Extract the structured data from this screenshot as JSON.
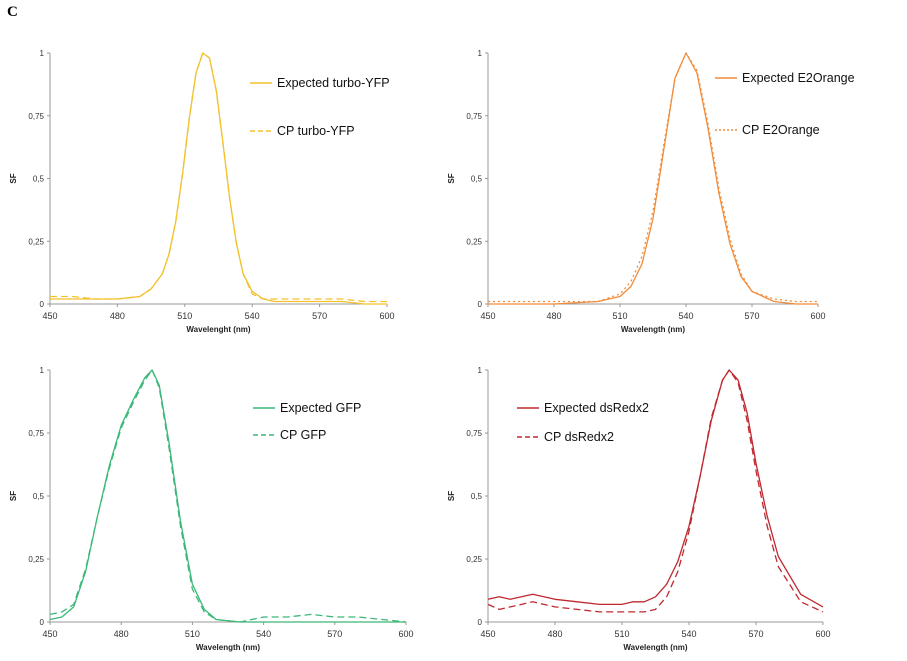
{
  "panel_label": "C",
  "chart_data": [
    {
      "type": "line",
      "xlabel": "Wavelenght (nm)",
      "ylabel": "SF",
      "xlim": [
        450,
        600
      ],
      "ylim": [
        0,
        1
      ],
      "xticks": [
        "450",
        "480",
        "510",
        "540",
        "570",
        "600"
      ],
      "yticks": [
        "0",
        "0,25",
        "0,5",
        "0,75",
        "1"
      ],
      "grid": false,
      "legend_position": "top-right",
      "series": [
        {
          "name": "Expected turbo-YFP",
          "style": "solid",
          "color": "#f2c12e",
          "x": [
            450,
            460,
            470,
            480,
            490,
            495,
            500,
            503,
            506,
            509,
            512,
            515,
            518,
            521,
            524,
            527,
            530,
            533,
            536,
            540,
            545,
            550,
            560,
            570,
            580,
            590,
            600
          ],
          "y": [
            0.02,
            0.02,
            0.02,
            0.02,
            0.03,
            0.06,
            0.12,
            0.2,
            0.33,
            0.52,
            0.74,
            0.92,
            1.0,
            0.98,
            0.85,
            0.64,
            0.42,
            0.24,
            0.12,
            0.05,
            0.02,
            0.01,
            0.01,
            0.01,
            0.01,
            0.0,
            0.0
          ]
        },
        {
          "name": "CP turbo-YFP",
          "style": "dashed",
          "color": "#f2c12e",
          "x": [
            450,
            460,
            470,
            480,
            490,
            495,
            500,
            503,
            506,
            509,
            512,
            515,
            518,
            521,
            524,
            527,
            530,
            533,
            536,
            540,
            545,
            550,
            560,
            570,
            580,
            590,
            600
          ],
          "y": [
            0.03,
            0.03,
            0.02,
            0.02,
            0.03,
            0.06,
            0.12,
            0.2,
            0.33,
            0.52,
            0.74,
            0.92,
            1.0,
            0.98,
            0.85,
            0.64,
            0.42,
            0.24,
            0.12,
            0.04,
            0.02,
            0.02,
            0.02,
            0.02,
            0.02,
            0.01,
            0.01
          ]
        }
      ]
    },
    {
      "type": "line",
      "xlabel": "Wavelength (nm)",
      "ylabel": "SF",
      "xlim": [
        450,
        600
      ],
      "ylim": [
        0,
        1
      ],
      "xticks": [
        "450",
        "480",
        "510",
        "540",
        "570",
        "600"
      ],
      "yticks": [
        "0",
        "0,25",
        "0,5",
        "0,75",
        "1"
      ],
      "grid": false,
      "legend_position": "top-right",
      "series": [
        {
          "name": "Expected E2Orange",
          "style": "solid",
          "color": "#f08c3a",
          "x": [
            450,
            480,
            500,
            510,
            515,
            520,
            525,
            530,
            535,
            540,
            545,
            550,
            555,
            560,
            565,
            570,
            580,
            590,
            600
          ],
          "y": [
            0.0,
            0.0,
            0.01,
            0.03,
            0.07,
            0.16,
            0.34,
            0.62,
            0.9,
            1.0,
            0.92,
            0.7,
            0.44,
            0.24,
            0.11,
            0.05,
            0.01,
            0.0,
            0.0
          ]
        },
        {
          "name": "CP E2Orange",
          "style": "dotted",
          "color": "#f08c3a",
          "x": [
            450,
            480,
            500,
            510,
            515,
            520,
            525,
            530,
            535,
            540,
            545,
            550,
            555,
            560,
            565,
            570,
            580,
            590,
            600
          ],
          "y": [
            0.01,
            0.01,
            0.01,
            0.04,
            0.09,
            0.19,
            0.37,
            0.64,
            0.9,
            1.0,
            0.93,
            0.72,
            0.46,
            0.26,
            0.12,
            0.05,
            0.02,
            0.01,
            0.01
          ]
        }
      ]
    },
    {
      "type": "line",
      "xlabel": "Wavelength (nm)",
      "ylabel": "SF",
      "xlim": [
        450,
        600
      ],
      "ylim": [
        0,
        1
      ],
      "xticks": [
        "450",
        "480",
        "510",
        "540",
        "570",
        "600"
      ],
      "yticks": [
        "0",
        "0,25",
        "0,5",
        "0,75",
        "1"
      ],
      "grid": false,
      "legend_position": "top-right",
      "series": [
        {
          "name": "Expected GFP",
          "style": "solid",
          "color": "#3cb878",
          "x": [
            450,
            455,
            460,
            465,
            470,
            475,
            480,
            485,
            490,
            493,
            496,
            500,
            505,
            510,
            515,
            520,
            530,
            540,
            560,
            580,
            600
          ],
          "y": [
            0.01,
            0.02,
            0.06,
            0.2,
            0.42,
            0.62,
            0.78,
            0.88,
            0.97,
            1.0,
            0.94,
            0.72,
            0.4,
            0.15,
            0.05,
            0.01,
            0.0,
            0.0,
            0.0,
            0.0,
            0.0
          ]
        },
        {
          "name": "CP GFP",
          "style": "dashed",
          "color": "#3cb878",
          "x": [
            450,
            455,
            460,
            465,
            470,
            475,
            480,
            485,
            490,
            493,
            496,
            500,
            505,
            510,
            515,
            520,
            530,
            540,
            550,
            560,
            570,
            580,
            590,
            600
          ],
          "y": [
            0.03,
            0.04,
            0.07,
            0.21,
            0.42,
            0.61,
            0.77,
            0.87,
            0.96,
            1.0,
            0.93,
            0.7,
            0.38,
            0.13,
            0.04,
            0.01,
            0.0,
            0.02,
            0.02,
            0.03,
            0.02,
            0.02,
            0.01,
            0.0
          ]
        }
      ]
    },
    {
      "type": "line",
      "xlabel": "Wavelength (nm)",
      "ylabel": "SF",
      "xlim": [
        450,
        600
      ],
      "ylim": [
        0,
        1
      ],
      "xticks": [
        "450",
        "480",
        "510",
        "540",
        "570",
        "600"
      ],
      "yticks": [
        "0",
        "0,25",
        "0,5",
        "0,75",
        "1"
      ],
      "grid": false,
      "legend_position": "top-left",
      "series": [
        {
          "name": "Expected dsRedx2",
          "style": "solid",
          "color": "#c0282f",
          "x": [
            450,
            455,
            460,
            465,
            470,
            475,
            480,
            490,
            500,
            510,
            515,
            520,
            525,
            530,
            535,
            540,
            545,
            550,
            555,
            558,
            562,
            566,
            570,
            575,
            580,
            590,
            600
          ],
          "y": [
            0.09,
            0.1,
            0.09,
            0.1,
            0.11,
            0.1,
            0.09,
            0.08,
            0.07,
            0.07,
            0.08,
            0.08,
            0.1,
            0.15,
            0.24,
            0.38,
            0.58,
            0.8,
            0.96,
            1.0,
            0.96,
            0.83,
            0.63,
            0.42,
            0.26,
            0.11,
            0.06
          ]
        },
        {
          "name": "CP dsRedx2",
          "style": "dashed",
          "color": "#c0282f",
          "x": [
            450,
            455,
            460,
            465,
            470,
            475,
            480,
            490,
            500,
            510,
            515,
            520,
            525,
            530,
            535,
            540,
            545,
            550,
            555,
            558,
            562,
            566,
            570,
            575,
            580,
            590,
            600
          ],
          "y": [
            0.07,
            0.05,
            0.06,
            0.07,
            0.08,
            0.07,
            0.06,
            0.05,
            0.04,
            0.04,
            0.04,
            0.04,
            0.05,
            0.1,
            0.2,
            0.36,
            0.58,
            0.81,
            0.96,
            1.0,
            0.95,
            0.8,
            0.6,
            0.38,
            0.22,
            0.08,
            0.04
          ]
        }
      ]
    }
  ]
}
